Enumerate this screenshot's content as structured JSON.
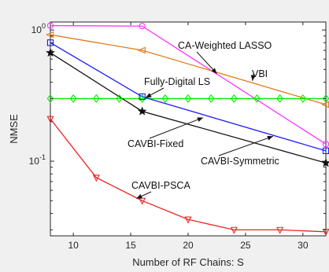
{
  "chart_data": {
    "type": "line",
    "title": "",
    "xlabel": "Number of RF Chains: S",
    "ylabel": "NMSE",
    "xlim": [
      8,
      32
    ],
    "ylim": [
      0.027,
      1.15
    ],
    "yscale": "log",
    "grid": false,
    "x_ticks": [
      10,
      15,
      20,
      25,
      30
    ],
    "x_tick_labels": [
      "10",
      "15",
      "20",
      "25",
      "30"
    ],
    "y_ticks": [
      0.1,
      1
    ],
    "y_tick_labels": [
      {
        "base": "10",
        "exp": "-1"
      },
      {
        "base": "10",
        "exp": "0"
      }
    ],
    "series": [
      {
        "name": "CA-Weighted LASSO",
        "color": "#ff33ff",
        "marker": "circle",
        "x": [
          8,
          16,
          32
        ],
        "y": [
          1.08,
          1.07,
          0.135
        ]
      },
      {
        "name": "VBI",
        "color": "#e07c1a",
        "marker": "triangle-left",
        "x": [
          8,
          16,
          32
        ],
        "y": [
          0.92,
          0.7,
          0.27
        ]
      },
      {
        "name": "Fully-Digital LS",
        "color": "#00ee00",
        "marker": "diamond",
        "x": [
          8,
          10,
          12,
          14,
          16,
          18,
          20,
          22,
          24,
          26,
          28,
          30,
          32
        ],
        "y": [
          0.3,
          0.3,
          0.3,
          0.3,
          0.3,
          0.3,
          0.3,
          0.3,
          0.3,
          0.3,
          0.3,
          0.3,
          0.3
        ]
      },
      {
        "name": "CAVBI-Fixed",
        "color": "#1a1aff",
        "marker": "square",
        "x": [
          8,
          16,
          32
        ],
        "y": [
          0.8,
          0.31,
          0.12
        ]
      },
      {
        "name": "CAVBI-Symmetric",
        "color": "#111111",
        "marker": "star",
        "x": [
          8,
          16,
          32
        ],
        "y": [
          0.67,
          0.24,
          0.097
        ]
      },
      {
        "name": "CAVBI-PSCA",
        "color": "#ee2222",
        "marker": "triangle-down",
        "x": [
          8,
          12,
          16,
          20,
          24,
          28,
          32
        ],
        "y": [
          0.21,
          0.075,
          0.05,
          0.036,
          0.03,
          0.03,
          0.029
        ]
      }
    ],
    "annotations": [
      {
        "text": "CA-Weighted LASSO",
        "series": "CA-Weighted LASSO"
      },
      {
        "text": "VBI",
        "series": "VBI"
      },
      {
        "text": "Fully-Digital LS",
        "series": "Fully-Digital LS"
      },
      {
        "text": "CAVBI-Fixed",
        "series": "CAVBI-Fixed"
      },
      {
        "text": "CAVBI-Symmetric",
        "series": "CAVBI-Symmetric"
      },
      {
        "text": "CAVBI-PSCA",
        "series": "CAVBI-PSCA"
      }
    ]
  }
}
